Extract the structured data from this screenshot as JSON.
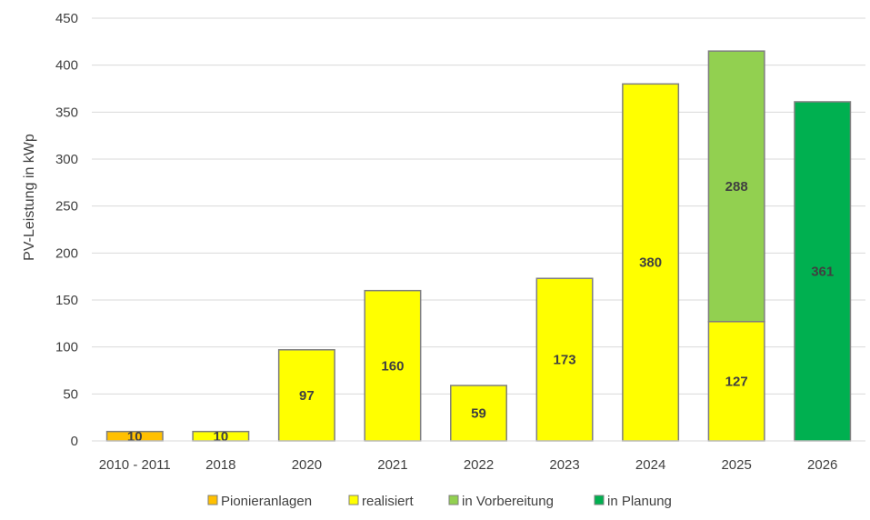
{
  "chart_data": {
    "type": "bar",
    "stacked": true,
    "categories": [
      "2010 - 2011",
      "2018",
      "2020",
      "2021",
      "2022",
      "2023",
      "2024",
      "2025",
      "2026"
    ],
    "series": [
      {
        "name": "Pionieranlagen",
        "color": "#ffc000",
        "values": [
          10,
          0,
          0,
          0,
          0,
          0,
          0,
          0,
          0
        ]
      },
      {
        "name": "realisiert",
        "color": "#ffff00",
        "values": [
          0,
          10,
          97,
          160,
          59,
          173,
          380,
          127,
          0
        ]
      },
      {
        "name": "in Vorbereitung",
        "color": "#92d050",
        "values": [
          0,
          0,
          0,
          0,
          0,
          0,
          0,
          288,
          0
        ]
      },
      {
        "name": "in Planung",
        "color": "#00b050",
        "values": [
          0,
          0,
          0,
          0,
          0,
          0,
          0,
          0,
          361
        ]
      }
    ],
    "ylabel": "PV-Leistung in kWp",
    "ylim": [
      0,
      450
    ],
    "yticks": [
      0,
      50,
      100,
      150,
      200,
      250,
      300,
      350,
      400,
      450
    ],
    "grid": true,
    "legend": "bottom"
  }
}
